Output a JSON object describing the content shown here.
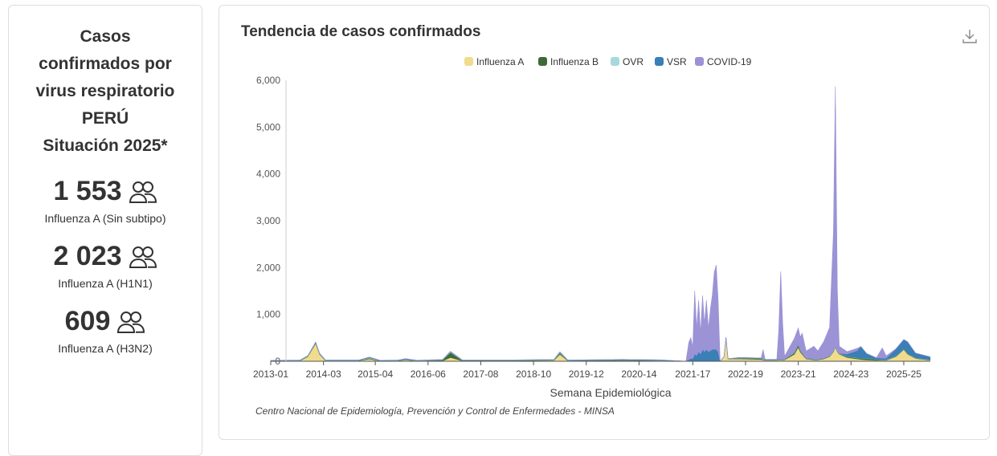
{
  "left": {
    "title_lines": [
      "Casos",
      "confirmados por",
      "virus respiratorio",
      "PERÚ",
      "Situación 2025*"
    ],
    "stats": [
      {
        "value": "1 553",
        "label": "Influenza A (Sin subtipo)",
        "icon": "people-icon"
      },
      {
        "value": "2 023",
        "label": "Influenza A (H1N1)",
        "icon": "people-icon"
      },
      {
        "value": "609",
        "label": "Influenza A (H3N2)",
        "icon": "people-icon"
      }
    ]
  },
  "chart_title": "Tendencia de casos confirmados",
  "download_icon": "download-icon",
  "source": "Centro Nacional de Epidemiología, Prevención y Control de Enfermedades - MINSA",
  "chart_data": {
    "type": "area",
    "stacked": true,
    "xlabel": "Semana Epidemiológica",
    "ylabel": "",
    "ylim": [
      0,
      6000
    ],
    "yticks": [
      "0",
      "1,000",
      "2,000",
      "3,000",
      "4,000",
      "5,000",
      "6,000"
    ],
    "xticks": [
      "2013-01",
      "2014-03",
      "2015-04",
      "2016-06",
      "2017-08",
      "2018-10",
      "2019-12",
      "2020-14",
      "2021-17",
      "2022-19",
      "2023-21",
      "2024-23",
      "2025-25"
    ],
    "legend_position": "top",
    "series": [
      {
        "name": "Influenza A",
        "color": "#f0dc8c"
      },
      {
        "name": "Influenza B",
        "color": "#3d6b35"
      },
      {
        "name": "OVR",
        "color": "#a8d8dc"
      },
      {
        "name": "VSR",
        "color": "#3a7fb5"
      },
      {
        "name": "COVID-19",
        "color": "#9b93d6"
      }
    ],
    "points": [
      [
        "2013-01",
        5,
        5,
        5,
        5,
        0
      ],
      [
        "2013-31",
        10,
        5,
        5,
        5,
        0
      ],
      [
        "2013-39",
        100,
        10,
        5,
        5,
        0
      ],
      [
        "2013-47",
        380,
        20,
        5,
        5,
        0
      ],
      [
        "2013-51",
        150,
        10,
        5,
        5,
        0
      ],
      [
        "2014-05",
        10,
        5,
        5,
        5,
        0
      ],
      [
        "2014-39",
        10,
        5,
        5,
        5,
        0
      ],
      [
        "2014-50",
        50,
        20,
        10,
        10,
        0
      ],
      [
        "2015-09",
        5,
        5,
        5,
        5,
        0
      ],
      [
        "2015-27",
        10,
        5,
        5,
        5,
        0
      ],
      [
        "2015-35",
        25,
        10,
        10,
        10,
        0
      ],
      [
        "2015-47",
        5,
        5,
        5,
        5,
        0
      ],
      [
        "2016-21",
        10,
        20,
        5,
        5,
        0
      ],
      [
        "2016-29",
        80,
        110,
        10,
        10,
        0
      ],
      [
        "2016-41",
        10,
        10,
        5,
        5,
        0
      ],
      [
        "2017-43",
        10,
        10,
        5,
        5,
        0
      ],
      [
        "2018-31",
        20,
        10,
        5,
        5,
        0
      ],
      [
        "2018-37",
        150,
        30,
        10,
        10,
        0
      ],
      [
        "2018-45",
        10,
        5,
        5,
        5,
        0
      ],
      [
        "2019-49",
        15,
        10,
        5,
        10,
        0
      ],
      [
        "2020-37",
        10,
        5,
        5,
        10,
        0
      ],
      [
        "2021-10",
        0,
        0,
        0,
        0,
        0
      ],
      [
        "2021-13",
        0,
        0,
        5,
        30,
        370
      ],
      [
        "2021-15",
        0,
        0,
        5,
        60,
        440
      ],
      [
        "2021-17",
        0,
        0,
        5,
        50,
        250
      ],
      [
        "2021-19",
        0,
        0,
        5,
        150,
        1350
      ],
      [
        "2021-21",
        0,
        0,
        5,
        120,
        580
      ],
      [
        "2021-23",
        0,
        0,
        5,
        200,
        1100
      ],
      [
        "2021-25",
        0,
        0,
        5,
        150,
        450
      ],
      [
        "2021-27",
        0,
        0,
        5,
        250,
        1150
      ],
      [
        "2021-29",
        0,
        0,
        5,
        200,
        600
      ],
      [
        "2021-31",
        0,
        0,
        5,
        250,
        1050
      ],
      [
        "2021-33",
        0,
        0,
        5,
        200,
        500
      ],
      [
        "2021-35",
        0,
        0,
        5,
        220,
        880
      ],
      [
        "2021-37",
        0,
        0,
        5,
        250,
        1150
      ],
      [
        "2021-39",
        0,
        0,
        5,
        250,
        1650
      ],
      [
        "2021-41",
        0,
        0,
        5,
        250,
        1800
      ],
      [
        "2021-43",
        0,
        0,
        5,
        200,
        1100
      ],
      [
        "2021-45",
        0,
        0,
        0,
        0,
        0
      ],
      [
        "2021-49",
        100,
        0,
        0,
        0,
        0
      ],
      [
        "2021-51",
        500,
        10,
        0,
        0,
        0
      ],
      [
        "2022-01",
        50,
        5,
        0,
        0,
        0
      ],
      [
        "2022-13",
        50,
        20,
        5,
        5,
        0
      ],
      [
        "2022-35",
        40,
        20,
        5,
        5,
        0
      ],
      [
        "2022-37",
        30,
        10,
        5,
        5,
        200
      ],
      [
        "2022-39",
        20,
        10,
        5,
        5,
        0
      ],
      [
        "2022-51",
        20,
        10,
        5,
        5,
        0
      ],
      [
        "2023-01",
        30,
        10,
        5,
        5,
        600
      ],
      [
        "2023-03",
        30,
        10,
        5,
        5,
        1870
      ],
      [
        "2023-05",
        30,
        10,
        5,
        5,
        770
      ],
      [
        "2023-07",
        30,
        10,
        5,
        5,
        60
      ],
      [
        "2023-17",
        150,
        30,
        5,
        5,
        300
      ],
      [
        "2023-21",
        300,
        50,
        5,
        5,
        350
      ],
      [
        "2023-23",
        200,
        30,
        5,
        5,
        280
      ],
      [
        "2023-25",
        150,
        20,
        5,
        5,
        420
      ],
      [
        "2023-29",
        50,
        10,
        5,
        5,
        150
      ],
      [
        "2023-37",
        30,
        10,
        5,
        5,
        270
      ],
      [
        "2023-41",
        30,
        10,
        5,
        5,
        170
      ],
      [
        "2023-47",
        50,
        10,
        5,
        5,
        350
      ],
      [
        "2024-01",
        100,
        10,
        5,
        5,
        600
      ],
      [
        "2024-05",
        200,
        10,
        5,
        5,
        2550
      ],
      [
        "2024-07",
        300,
        10,
        5,
        5,
        5550
      ],
      [
        "2024-09",
        200,
        10,
        5,
        5,
        1300
      ],
      [
        "2024-11",
        150,
        10,
        5,
        5,
        150
      ],
      [
        "2024-19",
        80,
        20,
        5,
        50,
        50
      ],
      [
        "2024-29",
        50,
        20,
        5,
        150,
        50
      ],
      [
        "2024-33",
        40,
        20,
        5,
        250,
        0
      ],
      [
        "2024-39",
        30,
        30,
        5,
        100,
        0
      ],
      [
        "2024-49",
        20,
        20,
        5,
        30,
        0
      ],
      [
        "2025-03",
        20,
        10,
        5,
        30,
        220
      ],
      [
        "2025-07",
        20,
        10,
        5,
        30,
        50
      ],
      [
        "2025-17",
        100,
        10,
        5,
        150,
        0
      ],
      [
        "2025-25",
        250,
        10,
        5,
        200,
        0
      ],
      [
        "2025-29",
        150,
        10,
        5,
        250,
        0
      ],
      [
        "2025-37",
        60,
        10,
        5,
        100,
        0
      ],
      [
        "2025-52",
        20,
        10,
        5,
        60,
        0
      ]
    ]
  }
}
